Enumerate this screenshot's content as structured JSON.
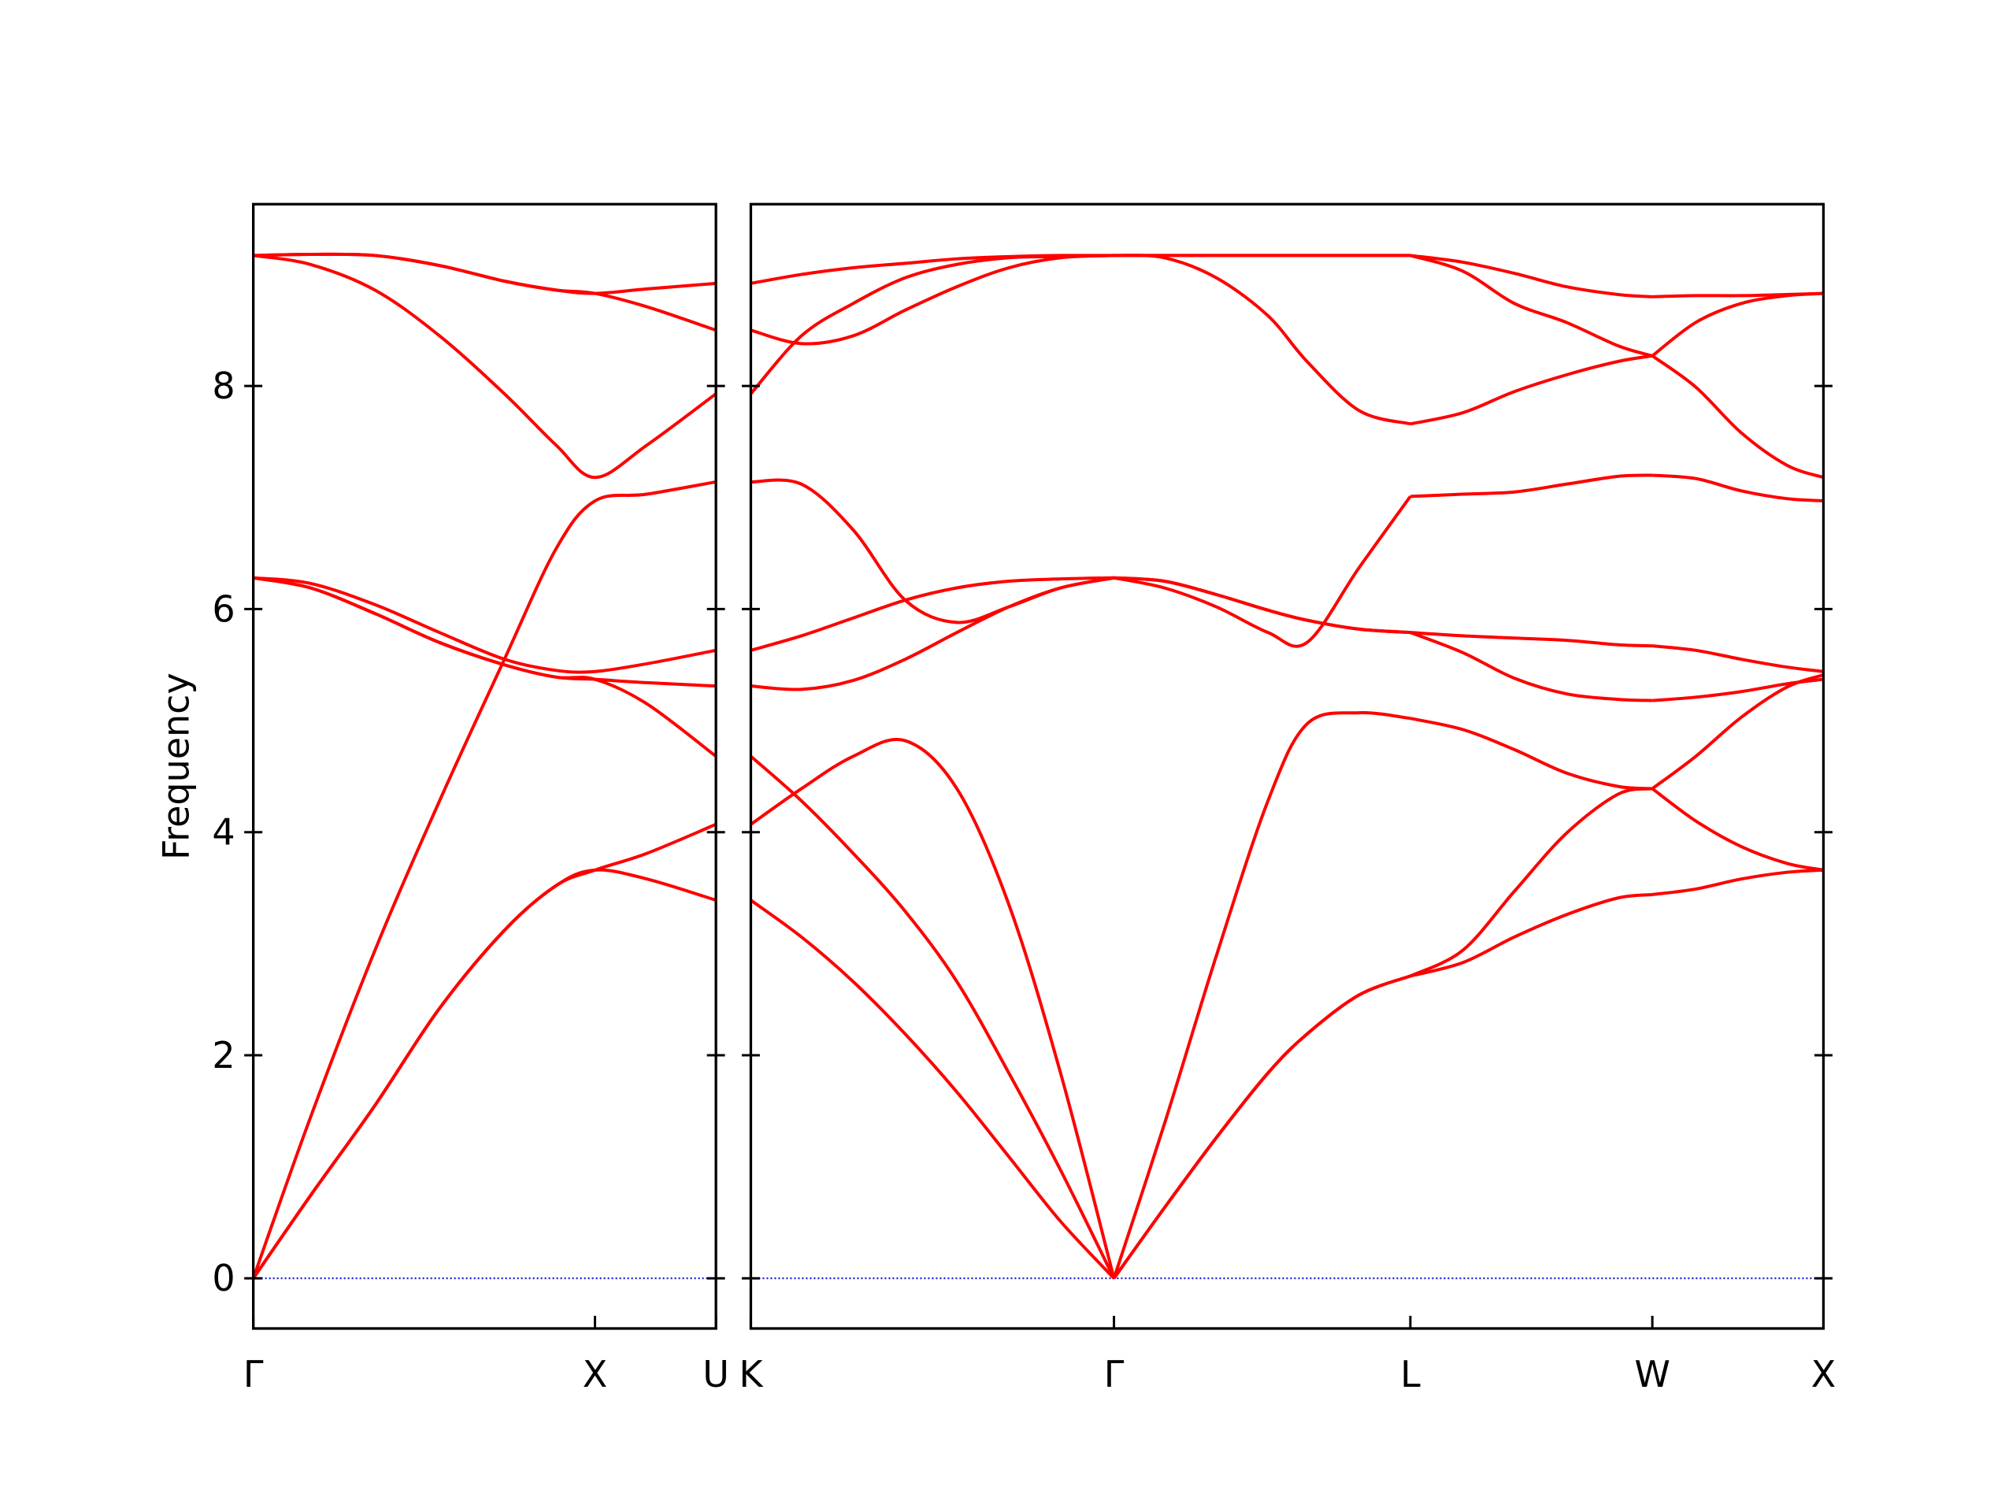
{
  "chart_data": [
    {
      "type": "line",
      "ylabel": "Frequency",
      "color": "#ff0000",
      "zero_line": "#0000cc",
      "xlim": [
        0,
        1.354
      ],
      "ylim": [
        -0.45,
        9.63
      ],
      "yticks": [
        0,
        2,
        4,
        6,
        8
      ],
      "xticks": [
        {
          "value": 0,
          "label": "Γ"
        },
        {
          "value": 1,
          "label": "X"
        },
        {
          "value": 1.354,
          "label": "U"
        }
      ],
      "show_ytick_labels": true,
      "series": [
        {
          "x": [
            0,
            0.167,
            0.356,
            0.545,
            0.735,
            0.886,
            1,
            1.152,
            1.354
          ],
          "values": [
            0,
            0.74,
            1.55,
            2.42,
            3.12,
            3.52,
            3.66,
            3.58,
            3.39
          ]
        },
        {
          "x": [
            0,
            0.167,
            0.356,
            0.545,
            0.735,
            0.886,
            1,
            1.152,
            1.354
          ],
          "values": [
            0,
            0.74,
            1.55,
            2.42,
            3.12,
            3.52,
            3.66,
            3.81,
            4.07
          ]
        },
        {
          "x": [
            0,
            0.167,
            0.356,
            0.545,
            0.735,
            0.886,
            1,
            1.152,
            1.354
          ],
          "values": [
            0,
            1.44,
            2.94,
            4.28,
            5.55,
            6.54,
            6.97,
            7.03,
            7.14
          ]
        },
        {
          "x": [
            0,
            0.167,
            0.356,
            0.545,
            0.735,
            0.886,
            1,
            1.152,
            1.354
          ],
          "values": [
            6.28,
            6.23,
            6.04,
            5.79,
            5.55,
            5.45,
            5.44,
            5.51,
            5.63
          ]
        },
        {
          "x": [
            0,
            0.167,
            0.356,
            0.545,
            0.735,
            0.886,
            1,
            1.152,
            1.354
          ],
          "values": [
            6.28,
            6.19,
            5.96,
            5.7,
            5.5,
            5.39,
            5.37,
            5.34,
            5.31
          ]
        },
        {
          "x": [
            0,
            0.167,
            0.356,
            0.545,
            0.735,
            0.886,
            1,
            1.152,
            1.354
          ],
          "values": [
            6.28,
            6.19,
            5.96,
            5.7,
            5.5,
            5.39,
            5.37,
            5.15,
            4.68
          ]
        },
        {
          "x": [
            0,
            0.167,
            0.356,
            0.545,
            0.735,
            0.886,
            1,
            1.152,
            1.354
          ],
          "values": [
            9.17,
            9.09,
            8.86,
            8.45,
            7.93,
            7.47,
            7.18,
            7.47,
            7.93
          ]
        },
        {
          "x": [
            0,
            0.167,
            0.356,
            0.545,
            0.735,
            0.886,
            1,
            1.152,
            1.354
          ],
          "values": [
            9.17,
            9.18,
            9.17,
            9.08,
            8.94,
            8.86,
            8.83,
            8.71,
            8.5
          ]
        },
        {
          "x": [
            0,
            0.167,
            0.356,
            0.545,
            0.735,
            0.886,
            1,
            1.152,
            1.354
          ],
          "values": [
            9.17,
            9.18,
            9.17,
            9.08,
            8.94,
            8.86,
            8.83,
            8.87,
            8.92
          ]
        }
      ]
    },
    {
      "type": "line",
      "color": "#ff0000",
      "zero_line": "#0000cc",
      "xlim": [
        1.354,
        4.488
      ],
      "ylim": [
        -0.45,
        9.63
      ],
      "yticks": [
        0,
        2,
        4,
        6,
        8
      ],
      "xticks": [
        {
          "value": 1.354,
          "label": "K"
        },
        {
          "value": 2.415,
          "label": "Γ"
        },
        {
          "value": 3.281,
          "label": "L"
        },
        {
          "value": 3.988,
          "label": "W"
        },
        {
          "value": 4.488,
          "label": "X"
        }
      ],
      "show_ytick_labels": false,
      "series": [
        {
          "x": [
            1.354,
            1.502,
            1.653,
            1.805,
            1.956,
            2.108,
            2.259,
            2.415
          ],
          "values": [
            3.39,
            3.06,
            2.66,
            2.19,
            1.67,
            1.09,
            0.51,
            0
          ]
        },
        {
          "x": [
            1.354,
            1.502,
            1.653,
            1.805,
            1.956,
            2.108,
            2.259,
            2.415
          ],
          "values": [
            4.68,
            4.28,
            3.81,
            3.29,
            2.66,
            1.84,
            0.97,
            0
          ]
        },
        {
          "x": [
            1.354,
            1.502,
            1.653,
            1.805,
            1.956,
            2.108,
            2.259,
            2.415
          ],
          "values": [
            4.07,
            4.39,
            4.68,
            4.82,
            4.39,
            3.35,
            1.84,
            0
          ]
        },
        {
          "x": [
            1.354,
            1.502,
            1.653,
            1.805,
            1.956,
            2.108,
            2.259,
            2.415
          ],
          "values": [
            7.14,
            7.12,
            6.71,
            6.08,
            5.88,
            6.02,
            6.19,
            6.28
          ]
        },
        {
          "x": [
            1.354,
            1.502,
            1.653,
            1.805,
            1.956,
            2.108,
            2.259,
            2.415
          ],
          "values": [
            5.63,
            5.76,
            5.92,
            6.08,
            6.19,
            6.25,
            6.27,
            6.28
          ]
        },
        {
          "x": [
            1.354,
            1.502,
            1.653,
            1.805,
            1.956,
            2.108,
            2.259,
            2.415
          ],
          "values": [
            5.31,
            5.28,
            5.36,
            5.55,
            5.79,
            6.02,
            6.19,
            6.28
          ]
        },
        {
          "x": [
            1.354,
            1.502,
            1.653,
            1.805,
            1.956,
            2.108,
            2.259,
            2.415
          ],
          "values": [
            7.93,
            8.45,
            8.74,
            8.97,
            9.09,
            9.15,
            9.16,
            9.17
          ]
        },
        {
          "x": [
            1.354,
            1.502,
            1.653,
            1.805,
            1.956,
            2.108,
            2.259,
            2.415
          ],
          "values": [
            8.5,
            8.38,
            8.45,
            8.68,
            8.89,
            9.06,
            9.15,
            9.17
          ]
        },
        {
          "x": [
            1.354,
            1.502,
            1.653,
            1.805,
            1.956,
            2.108,
            2.259,
            2.415
          ],
          "values": [
            8.92,
            9.0,
            9.06,
            9.1,
            9.14,
            9.16,
            9.17,
            9.17
          ]
        },
        {
          "x": [
            2.415,
            2.562,
            2.714,
            2.865,
            2.979,
            3.131,
            3.281
          ],
          "values": [
            0,
            0.63,
            1.26,
            1.84,
            2.19,
            2.54,
            2.71
          ]
        },
        {
          "x": [
            2.415,
            2.562,
            2.714,
            2.865,
            2.979,
            3.131,
            3.281
          ],
          "values": [
            0,
            0.63,
            1.26,
            1.84,
            2.19,
            2.54,
            2.71
          ]
        },
        {
          "x": [
            2.415,
            2.562,
            2.714,
            2.865,
            2.979,
            3.131,
            3.281
          ],
          "values": [
            0,
            1.38,
            2.89,
            4.28,
            4.97,
            5.07,
            5.02
          ]
        },
        {
          "x": [
            2.415,
            2.562,
            2.714,
            2.865,
            2.979,
            3.131,
            3.281
          ],
          "values": [
            6.28,
            6.25,
            6.13,
            5.99,
            5.9,
            5.82,
            5.79
          ]
        },
        {
          "x": [
            2.415,
            2.562,
            2.714,
            2.865,
            2.979,
            3.131,
            3.281
          ],
          "values": [
            6.28,
            6.25,
            6.13,
            5.99,
            5.9,
            5.82,
            5.79
          ]
        },
        {
          "x": [
            2.415,
            2.562,
            2.714,
            2.865,
            2.979,
            3.131,
            3.281
          ],
          "values": [
            6.28,
            6.19,
            6.02,
            5.79,
            5.7,
            6.37,
            7.01
          ]
        },
        {
          "x": [
            2.415,
            2.562,
            2.714,
            2.865,
            2.979,
            3.131,
            3.281
          ],
          "values": [
            9.17,
            9.15,
            8.97,
            8.63,
            8.22,
            7.78,
            7.66
          ]
        },
        {
          "x": [
            2.415,
            2.562,
            2.714,
            2.865,
            2.979,
            3.131,
            3.281
          ],
          "values": [
            9.17,
            9.17,
            9.17,
            9.17,
            9.17,
            9.17,
            9.17
          ]
        },
        {
          "x": [
            2.415,
            2.562,
            2.714,
            2.865,
            2.979,
            3.131,
            3.281
          ],
          "values": [
            9.17,
            9.17,
            9.17,
            9.17,
            9.17,
            9.17,
            9.17
          ]
        },
        {
          "x": [
            3.281,
            3.434,
            3.585,
            3.737,
            3.888,
            3.988
          ],
          "values": [
            9.17,
            9.11,
            9.01,
            8.89,
            8.82,
            8.8
          ]
        },
        {
          "x": [
            3.281,
            3.434,
            3.585,
            3.737,
            3.888,
            3.988
          ],
          "values": [
            9.17,
            9.03,
            8.74,
            8.57,
            8.36,
            8.27
          ]
        },
        {
          "x": [
            3.281,
            3.434,
            3.585,
            3.737,
            3.888,
            3.988
          ],
          "values": [
            7.66,
            7.76,
            7.95,
            8.1,
            8.22,
            8.27
          ]
        },
        {
          "x": [
            3.281,
            3.434,
            3.585,
            3.737,
            3.888,
            3.988
          ],
          "values": [
            7.01,
            7.03,
            7.05,
            7.12,
            7.19,
            7.2
          ]
        },
        {
          "x": [
            3.281,
            3.434,
            3.585,
            3.737,
            3.888,
            3.988
          ],
          "values": [
            5.79,
            5.76,
            5.74,
            5.72,
            5.68,
            5.67
          ]
        },
        {
          "x": [
            3.281,
            3.434,
            3.585,
            3.737,
            3.888,
            3.988
          ],
          "values": [
            5.79,
            5.61,
            5.38,
            5.24,
            5.19,
            5.18
          ]
        },
        {
          "x": [
            3.281,
            3.434,
            3.585,
            3.737,
            3.888,
            3.988
          ],
          "values": [
            5.02,
            4.92,
            4.74,
            4.53,
            4.41,
            4.39
          ]
        },
        {
          "x": [
            3.281,
            3.434,
            3.585,
            3.737,
            3.888,
            3.988
          ],
          "values": [
            2.71,
            2.94,
            3.47,
            3.99,
            4.34,
            4.39
          ]
        },
        {
          "x": [
            3.281,
            3.434,
            3.585,
            3.737,
            3.888,
            3.988
          ],
          "values": [
            2.71,
            2.83,
            3.06,
            3.26,
            3.41,
            3.44
          ]
        },
        {
          "x": [
            3.988,
            4.115,
            4.248,
            4.381,
            4.488
          ],
          "values": [
            8.8,
            8.81,
            8.81,
            8.82,
            8.83
          ]
        },
        {
          "x": [
            3.988,
            4.115,
            4.248,
            4.381,
            4.488
          ],
          "values": [
            8.27,
            8.57,
            8.74,
            8.81,
            8.83
          ]
        },
        {
          "x": [
            3.988,
            4.115,
            4.248,
            4.381,
            4.488
          ],
          "values": [
            8.27,
            7.99,
            7.58,
            7.29,
            7.18
          ]
        },
        {
          "x": [
            3.988,
            4.115,
            4.248,
            4.381,
            4.488
          ],
          "values": [
            7.2,
            7.17,
            7.06,
            6.99,
            6.97
          ]
        },
        {
          "x": [
            3.988,
            4.115,
            4.248,
            4.381,
            4.488
          ],
          "values": [
            5.67,
            5.63,
            5.55,
            5.48,
            5.44
          ]
        },
        {
          "x": [
            3.988,
            4.115,
            4.248,
            4.381,
            4.488
          ],
          "values": [
            5.18,
            5.21,
            5.26,
            5.33,
            5.37
          ]
        },
        {
          "x": [
            3.988,
            4.115,
            4.248,
            4.381,
            4.488
          ],
          "values": [
            4.39,
            4.68,
            5.03,
            5.3,
            5.41
          ]
        },
        {
          "x": [
            3.988,
            4.115,
            4.248,
            4.381,
            4.488
          ],
          "values": [
            4.39,
            4.1,
            3.87,
            3.72,
            3.66
          ]
        },
        {
          "x": [
            3.988,
            4.115,
            4.248,
            4.381,
            4.488
          ],
          "values": [
            3.44,
            3.49,
            3.58,
            3.64,
            3.66
          ]
        }
      ]
    }
  ]
}
